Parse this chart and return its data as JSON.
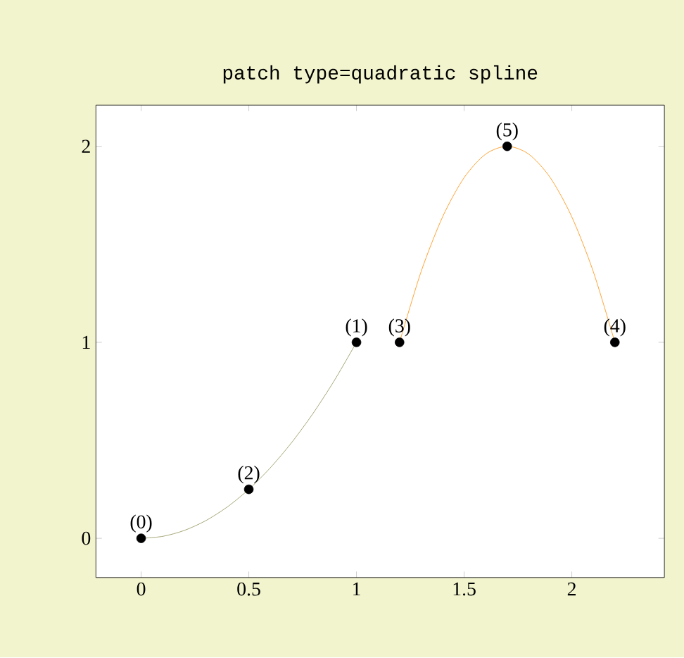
{
  "chart_data": {
    "type": "line",
    "title": "patch type=quadratic spline",
    "xlim": [
      -0.21,
      2.43
    ],
    "ylim": [
      -0.2,
      2.21
    ],
    "xticks": [
      0,
      0.5,
      1,
      1.5,
      2
    ],
    "yticks": [
      0,
      1,
      2
    ],
    "grid": false,
    "annotations": [
      {
        "text": "(0)",
        "x": 0,
        "y": 0
      },
      {
        "text": "(1)",
        "x": 1,
        "y": 1
      },
      {
        "text": "(2)",
        "x": 0.5,
        "y": 0.25
      },
      {
        "text": "(3)",
        "x": 1.2,
        "y": 1
      },
      {
        "text": "(4)",
        "x": 2.2,
        "y": 1
      },
      {
        "text": "(5)",
        "x": 1.7,
        "y": 2
      }
    ],
    "series": [
      {
        "color": "#8f8f55",
        "x": [
          0,
          0.1,
          0.2,
          0.3,
          0.4,
          0.5,
          0.6,
          0.7,
          0.8,
          0.9,
          1
        ],
        "values": [
          0,
          0.01,
          0.04,
          0.09,
          0.16,
          0.25,
          0.36,
          0.49,
          0.64,
          0.81,
          1
        ],
        "marker": "none"
      },
      {
        "color": "#ff8c00",
        "x": [
          1.2,
          1.3,
          1.4,
          1.5,
          1.6,
          1.7,
          1.8,
          1.9,
          2.0,
          2.1,
          2.2
        ],
        "values": [
          1,
          1.36,
          1.64,
          1.84,
          1.96,
          2,
          1.96,
          1.84,
          1.64,
          1.36,
          1
        ],
        "marker": "none"
      },
      {
        "type": "scatter",
        "color": "#000000",
        "marker": "circle",
        "x": [
          0,
          1,
          0.5,
          1.2,
          2.2,
          1.7
        ],
        "values": [
          0,
          1,
          0.25,
          1,
          1,
          2
        ]
      }
    ]
  }
}
